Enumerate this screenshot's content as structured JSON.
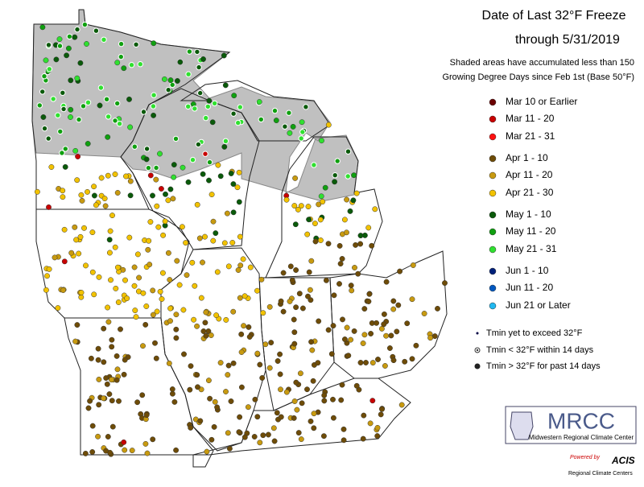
{
  "header": {
    "title_line1": "Date of Last 32°F Freeze",
    "title_line2": "through 5/31/2019",
    "note_line1": "Shaded areas have accumulated less than 150",
    "note_line2": "Growing Degree Days since Feb 1st (Base 50°F)"
  },
  "legend": {
    "items": [
      {
        "label": "Mar 10 or Earlier",
        "color": "#6b0000"
      },
      {
        "label": "Mar 11 - 20",
        "color": "#c80000"
      },
      {
        "label": "Mar 21 - 31",
        "color": "#ff1010"
      },
      {
        "label": "Apr 1 - 10",
        "color": "#6e4c08"
      },
      {
        "label": "Apr 11 - 20",
        "color": "#c89a10"
      },
      {
        "label": "Apr 21 - 30",
        "color": "#f2c200"
      },
      {
        "label": "May 1 - 10",
        "color": "#0a5a0a"
      },
      {
        "label": "May 11 - 20",
        "color": "#10a010"
      },
      {
        "label": "May 21 - 31",
        "color": "#30e030"
      },
      {
        "label": "Jun 1 - 10",
        "color": "#00207a"
      },
      {
        "label": "Jun 11 - 20",
        "color": "#0058c0"
      },
      {
        "label": "Jun 21 or Later",
        "color": "#20b8f0"
      }
    ],
    "symbols": [
      "Tmin yet to exceed 32°F",
      "Tmin < 32°F within 14 days",
      "Tmin > 32°F for past 14 days"
    ]
  },
  "logo": {
    "name": "MRCC",
    "full_name": "Midwestern Regional Climate Center",
    "powered": "Powered by",
    "acis": "ACIS",
    "rcc": "Regional Climate Centers"
  }
}
